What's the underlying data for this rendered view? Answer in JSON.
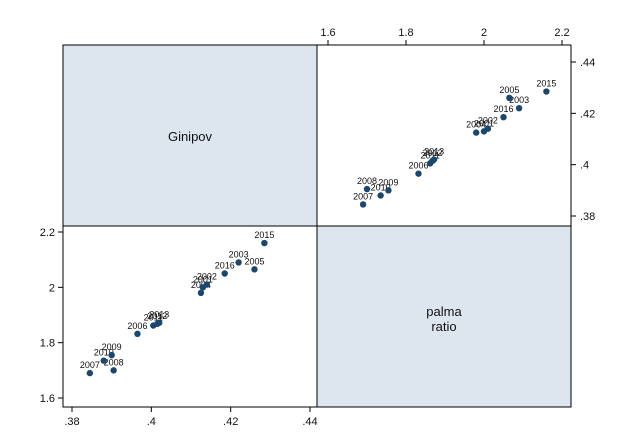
{
  "chart_data": {
    "type": "scatter-matrix",
    "variables": [
      {
        "name": "Ginipov",
        "label_lines": [
          "Ginipov"
        ],
        "ticks": [
          ".38",
          ".4",
          ".42",
          ".44"
        ],
        "tick_values": [
          0.38,
          0.4,
          0.42,
          0.44
        ],
        "range": [
          0.38,
          0.44
        ]
      },
      {
        "name": "palma ratio",
        "label_lines": [
          "palma",
          "ratio"
        ],
        "ticks": [
          "1.6",
          "1.8",
          "2",
          "2.2"
        ],
        "tick_values": [
          1.6,
          1.8,
          2.0,
          2.2
        ],
        "range": [
          1.6,
          2.2
        ]
      }
    ],
    "points": [
      {
        "label": "2007",
        "ginipov": 0.3845,
        "palma": 1.69
      },
      {
        "label": "2008",
        "ginipov": 0.3905,
        "palma": 1.7
      },
      {
        "label": "2010",
        "ginipov": 0.388,
        "palma": 1.735
      },
      {
        "label": "2009",
        "ginipov": 0.39,
        "palma": 1.755
      },
      {
        "label": "2006",
        "ginipov": 0.3965,
        "palma": 1.832
      },
      {
        "label": "2011",
        "ginipov": 0.4005,
        "palma": 1.862
      },
      {
        "label": "2012",
        "ginipov": 0.4015,
        "palma": 1.868
      },
      {
        "label": "2013",
        "ginipov": 0.402,
        "palma": 1.872
      },
      {
        "label": "2004",
        "ginipov": 0.4125,
        "palma": 1.98
      },
      {
        "label": "2001",
        "ginipov": 0.413,
        "palma": 2.0
      },
      {
        "label": "2002",
        "ginipov": 0.414,
        "palma": 2.01
      },
      {
        "label": "2016",
        "ginipov": 0.4185,
        "palma": 2.05
      },
      {
        "label": "2003",
        "ginipov": 0.422,
        "palma": 2.09
      },
      {
        "label": "2005",
        "ginipov": 0.426,
        "palma": 2.065
      },
      {
        "label": "2015",
        "ginipov": 0.4285,
        "palma": 2.16
      }
    ],
    "grid": false,
    "legend": "none",
    "colors": {
      "marker": "#1a476f",
      "diagonal_fill": "#dde6ee",
      "frame": "#000000",
      "background": "#ffffff"
    }
  }
}
